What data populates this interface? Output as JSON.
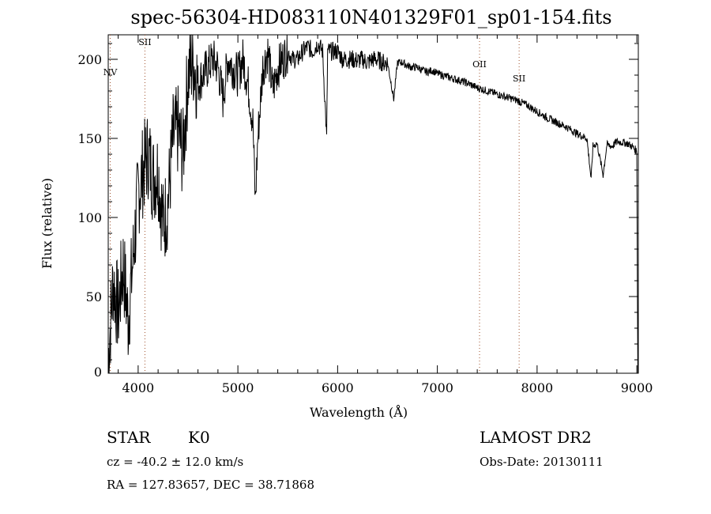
{
  "chart_data": {
    "type": "line",
    "title": "spec-56304-HD083110N401329F01_sp01-154.fits",
    "xlabel": "Wavelength (Å)",
    "ylabel": "Flux (relative)",
    "xlim": [
      3700,
      9015
    ],
    "ylim": [
      1.5,
      215.5
    ],
    "xticks": [
      4000,
      5000,
      6000,
      7000,
      8000,
      9000
    ],
    "yticks": [
      0,
      50,
      100,
      150,
      200
    ],
    "grid": false,
    "line_markers": [
      {
        "label": "NV",
        "x": 3720,
        "label_y": 190
      },
      {
        "label": "SII",
        "x": 4068,
        "label_y": 209
      },
      {
        "label": "OII",
        "x": 7423,
        "label_y": 195
      },
      {
        "label": "SII",
        "x": 7820,
        "label_y": 186
      }
    ],
    "marker_color": "#a0522d",
    "series": [
      {
        "name": "flux",
        "x": [
          3700,
          3750,
          3800,
          3850,
          3900,
          3950,
          4000,
          4050,
          4100,
          4150,
          4200,
          4250,
          4300,
          4350,
          4400,
          4450,
          4500,
          4550,
          4600,
          4650,
          4700,
          4750,
          4800,
          4850,
          4900,
          4950,
          5000,
          5050,
          5100,
          5150,
          5175,
          5200,
          5250,
          5300,
          5350,
          5400,
          5450,
          5500,
          5550,
          5600,
          5650,
          5700,
          5750,
          5800,
          5850,
          5890,
          5900,
          5950,
          6000,
          6050,
          6100,
          6150,
          6200,
          6250,
          6300,
          6350,
          6400,
          6450,
          6500,
          6563,
          6600,
          6650,
          6700,
          6750,
          6800,
          6850,
          6900,
          6950,
          7000,
          7100,
          7200,
          7300,
          7400,
          7500,
          7600,
          7700,
          7800,
          7900,
          8000,
          8100,
          8200,
          8300,
          8400,
          8500,
          8542,
          8560,
          8600,
          8662,
          8700,
          8750,
          8800,
          8900,
          8950,
          9000,
          9010
        ],
        "y": [
          10,
          60,
          40,
          70,
          35,
          75,
          115,
          130,
          140,
          125,
          130,
          95,
          110,
          150,
          155,
          140,
          190,
          200,
          185,
          190,
          195,
          200,
          195,
          175,
          200,
          195,
          190,
          200,
          185,
          160,
          110,
          150,
          195,
          205,
          180,
          195,
          200,
          205,
          200,
          200,
          205,
          208,
          205,
          210,
          205,
          150,
          205,
          205,
          205,
          200,
          200,
          200,
          199,
          200,
          198,
          200,
          200,
          198,
          198,
          175,
          198,
          198,
          196,
          195,
          195,
          193,
          192,
          193,
          191,
          189,
          187,
          185,
          182,
          180,
          178,
          176,
          174,
          171,
          167,
          163,
          160,
          157,
          153,
          150,
          124,
          145,
          147,
          127,
          146,
          145,
          148,
          147,
          145,
          142,
          0
        ]
      }
    ]
  },
  "annotations": {
    "object_class": "STAR",
    "subclass": "K0",
    "survey": "LAMOST DR2",
    "redshift": "cz = -40.2 ± 12.0 km/s",
    "obs_date": "Obs-Date: 20130111",
    "coords": "RA = 127.83657, DEC =  38.71868"
  }
}
